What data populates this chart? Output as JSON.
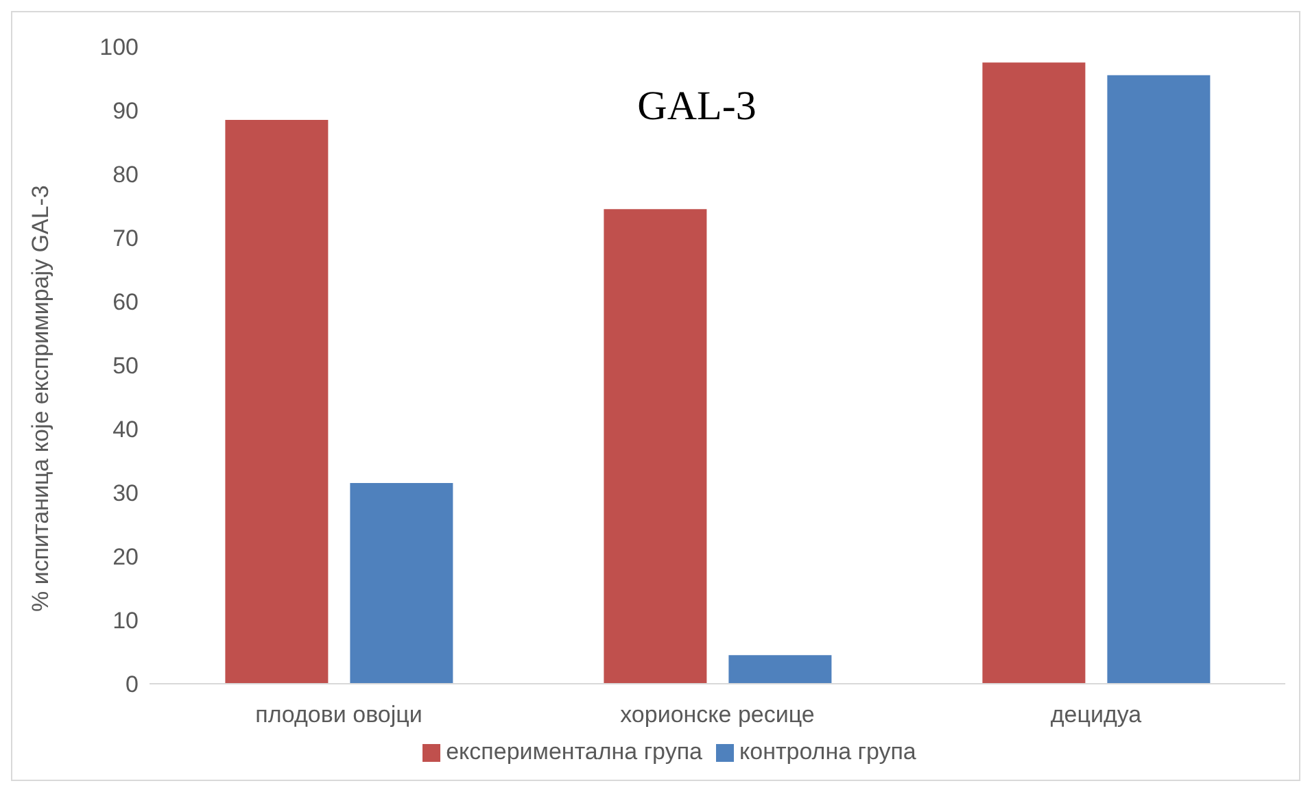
{
  "chart_data": {
    "type": "bar",
    "title": "GAL-3",
    "ylabel": "% испитаница које експримирају GAL-3",
    "categories": [
      "плодови овојци",
      "хорионске ресице",
      "децидуа"
    ],
    "series": [
      {
        "name": "експериментална група",
        "color": "#c0504d",
        "values": [
          88.5,
          74.5,
          97.5
        ]
      },
      {
        "name": "контролна група",
        "color": "#4f81bd",
        "values": [
          31.5,
          4.5,
          95.5
        ]
      }
    ],
    "ylim": [
      0,
      100
    ],
    "yticks": [
      0,
      10,
      20,
      30,
      40,
      50,
      60,
      70,
      80,
      90,
      100
    ],
    "grid": false,
    "legend": "bottom"
  }
}
